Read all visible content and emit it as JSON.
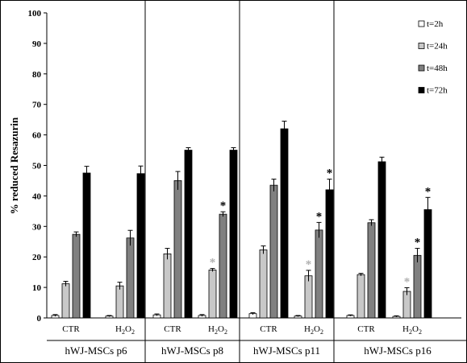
{
  "chart_data": {
    "type": "bar",
    "title": "",
    "ylabel": "% reduced Resazurin",
    "xlabel": "",
    "ylim": [
      0,
      100
    ],
    "yticks": [
      0,
      10,
      20,
      30,
      40,
      50,
      60,
      70,
      80,
      90,
      100
    ],
    "grid": false,
    "legend_position": "top-right",
    "series": [
      {
        "name": "t=2h",
        "color": "#ffffff"
      },
      {
        "name": "t=24h",
        "color": "#c8c8c8"
      },
      {
        "name": "t=48h",
        "color": "#808080"
      },
      {
        "name": "t=72h",
        "color": "#000000"
      }
    ],
    "groups": [
      {
        "name": "hWJ-MSCs p6",
        "conditions": [
          {
            "label": "CTR",
            "values": [
              0.8,
              11.2,
              27.4,
              47.5
            ],
            "errors": [
              0.3,
              0.8,
              0.8,
              2.2
            ],
            "significant": [
              false,
              false,
              false,
              false
            ]
          },
          {
            "label": "H2O2",
            "values": [
              0.6,
              10.5,
              26.2,
              47.3
            ],
            "errors": [
              0.2,
              1.2,
              2.5,
              2.5
            ],
            "significant": [
              false,
              false,
              false,
              false
            ]
          }
        ]
      },
      {
        "name": "hWJ-MSCs p8",
        "conditions": [
          {
            "label": "CTR",
            "values": [
              1.0,
              21.0,
              45.0,
              55.0
            ],
            "errors": [
              0.3,
              1.8,
              3.0,
              0.8
            ],
            "significant": [
              false,
              false,
              false,
              false
            ]
          },
          {
            "label": "H2O2",
            "values": [
              0.8,
              15.7,
              34.0,
              55.0
            ],
            "errors": [
              0.3,
              0.5,
              0.8,
              0.8
            ],
            "significant": [
              false,
              true,
              true,
              false
            ]
          }
        ]
      },
      {
        "name": "hWJ-MSCs p11",
        "conditions": [
          {
            "label": "CTR",
            "values": [
              1.4,
              22.3,
              43.5,
              62.0
            ],
            "errors": [
              0.3,
              1.3,
              2.0,
              2.5
            ],
            "significant": [
              false,
              false,
              false,
              false
            ]
          },
          {
            "label": "H2O2",
            "values": [
              0.6,
              13.8,
              28.8,
              42.0
            ],
            "errors": [
              0.2,
              1.8,
              2.5,
              3.5
            ],
            "significant": [
              false,
              true,
              true,
              true
            ]
          }
        ]
      },
      {
        "name": "hWJ-MSCs p16",
        "conditions": [
          {
            "label": "CTR",
            "values": [
              0.8,
              14.2,
              31.2,
              51.2
            ],
            "errors": [
              0.2,
              0.4,
              1.0,
              1.5
            ],
            "significant": [
              false,
              false,
              false,
              false
            ]
          },
          {
            "label": "H2O2",
            "values": [
              0.5,
              8.7,
              20.5,
              35.5
            ],
            "errors": [
              0.2,
              1.2,
              2.3,
              4.0
            ],
            "significant": [
              false,
              true,
              true,
              true
            ]
          }
        ]
      }
    ],
    "significance_marker": "*",
    "colors": {
      "marker_gray": "#b0b0b0",
      "marker_black": "#000000"
    }
  }
}
